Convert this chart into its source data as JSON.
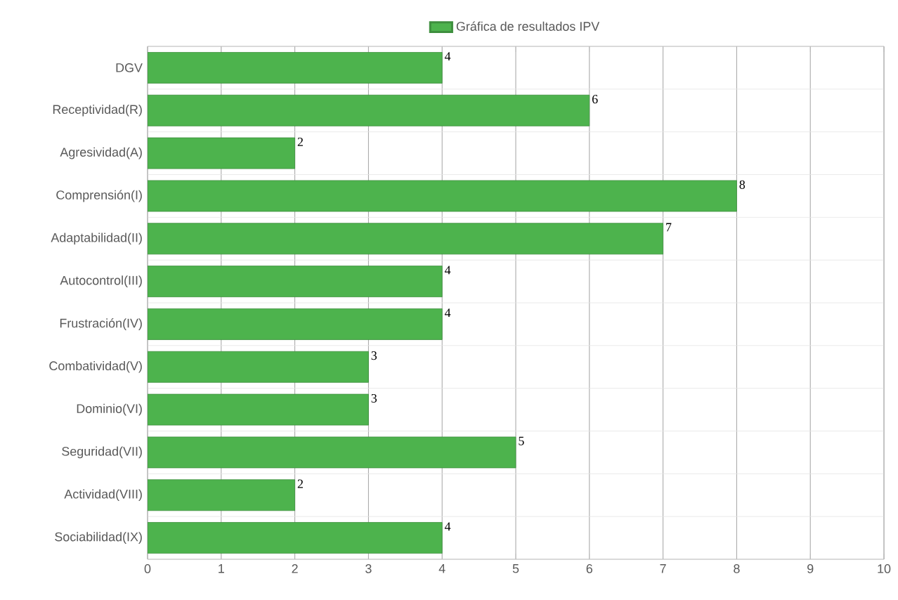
{
  "chart_data": {
    "type": "bar",
    "orientation": "horizontal",
    "categories": [
      "DGV",
      "Receptividad(R)",
      "Agresividad(A)",
      "Comprensión(I)",
      "Adaptabilidad(II)",
      "Autocontrol(III)",
      "Frustración(IV)",
      "Combatividad(V)",
      "Dominio(VI)",
      "Seguridad(VII)",
      "Actividad(VIII)",
      "Sociabilidad(IX)"
    ],
    "series": [
      {
        "name": "Gráfica de resultados IPV",
        "color": "#4db34d",
        "values": [
          4,
          6,
          2,
          8,
          7,
          4,
          4,
          3,
          3,
          5,
          2,
          4
        ]
      }
    ],
    "xlim": [
      0,
      10
    ],
    "xticks": [
      0,
      1,
      2,
      3,
      4,
      5,
      6,
      7,
      8,
      9,
      10
    ],
    "grid": true,
    "legend": "top",
    "data_labels": true
  }
}
